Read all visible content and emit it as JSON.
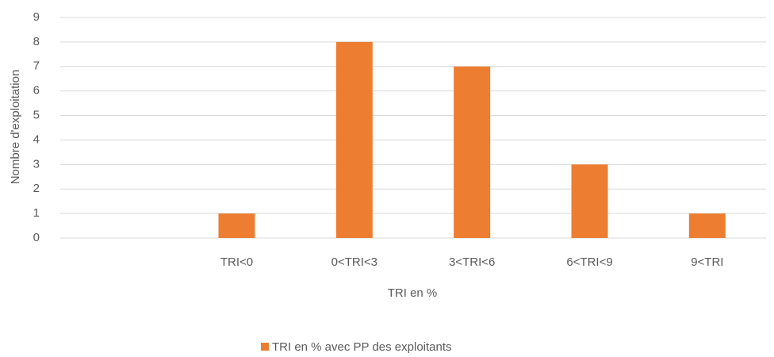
{
  "chart_data": {
    "type": "bar",
    "x_label": "TRI en %",
    "y_label": "Nombre d'exploitation",
    "categories": [
      null,
      "TRI<0",
      "0<TRI<3",
      "3<TRI<6",
      "6<TRI<9",
      "9<TRI"
    ],
    "series": [
      {
        "name": "TRI en % avec PP des exploitants",
        "color": "#ed7d31",
        "values": [
          null,
          1,
          8,
          7,
          3,
          1
        ]
      }
    ],
    "ylim": [
      0,
      9
    ],
    "yticks": [
      0,
      1,
      2,
      3,
      4,
      5,
      6,
      7,
      8,
      9
    ],
    "grid": true,
    "legend": "bottom"
  }
}
